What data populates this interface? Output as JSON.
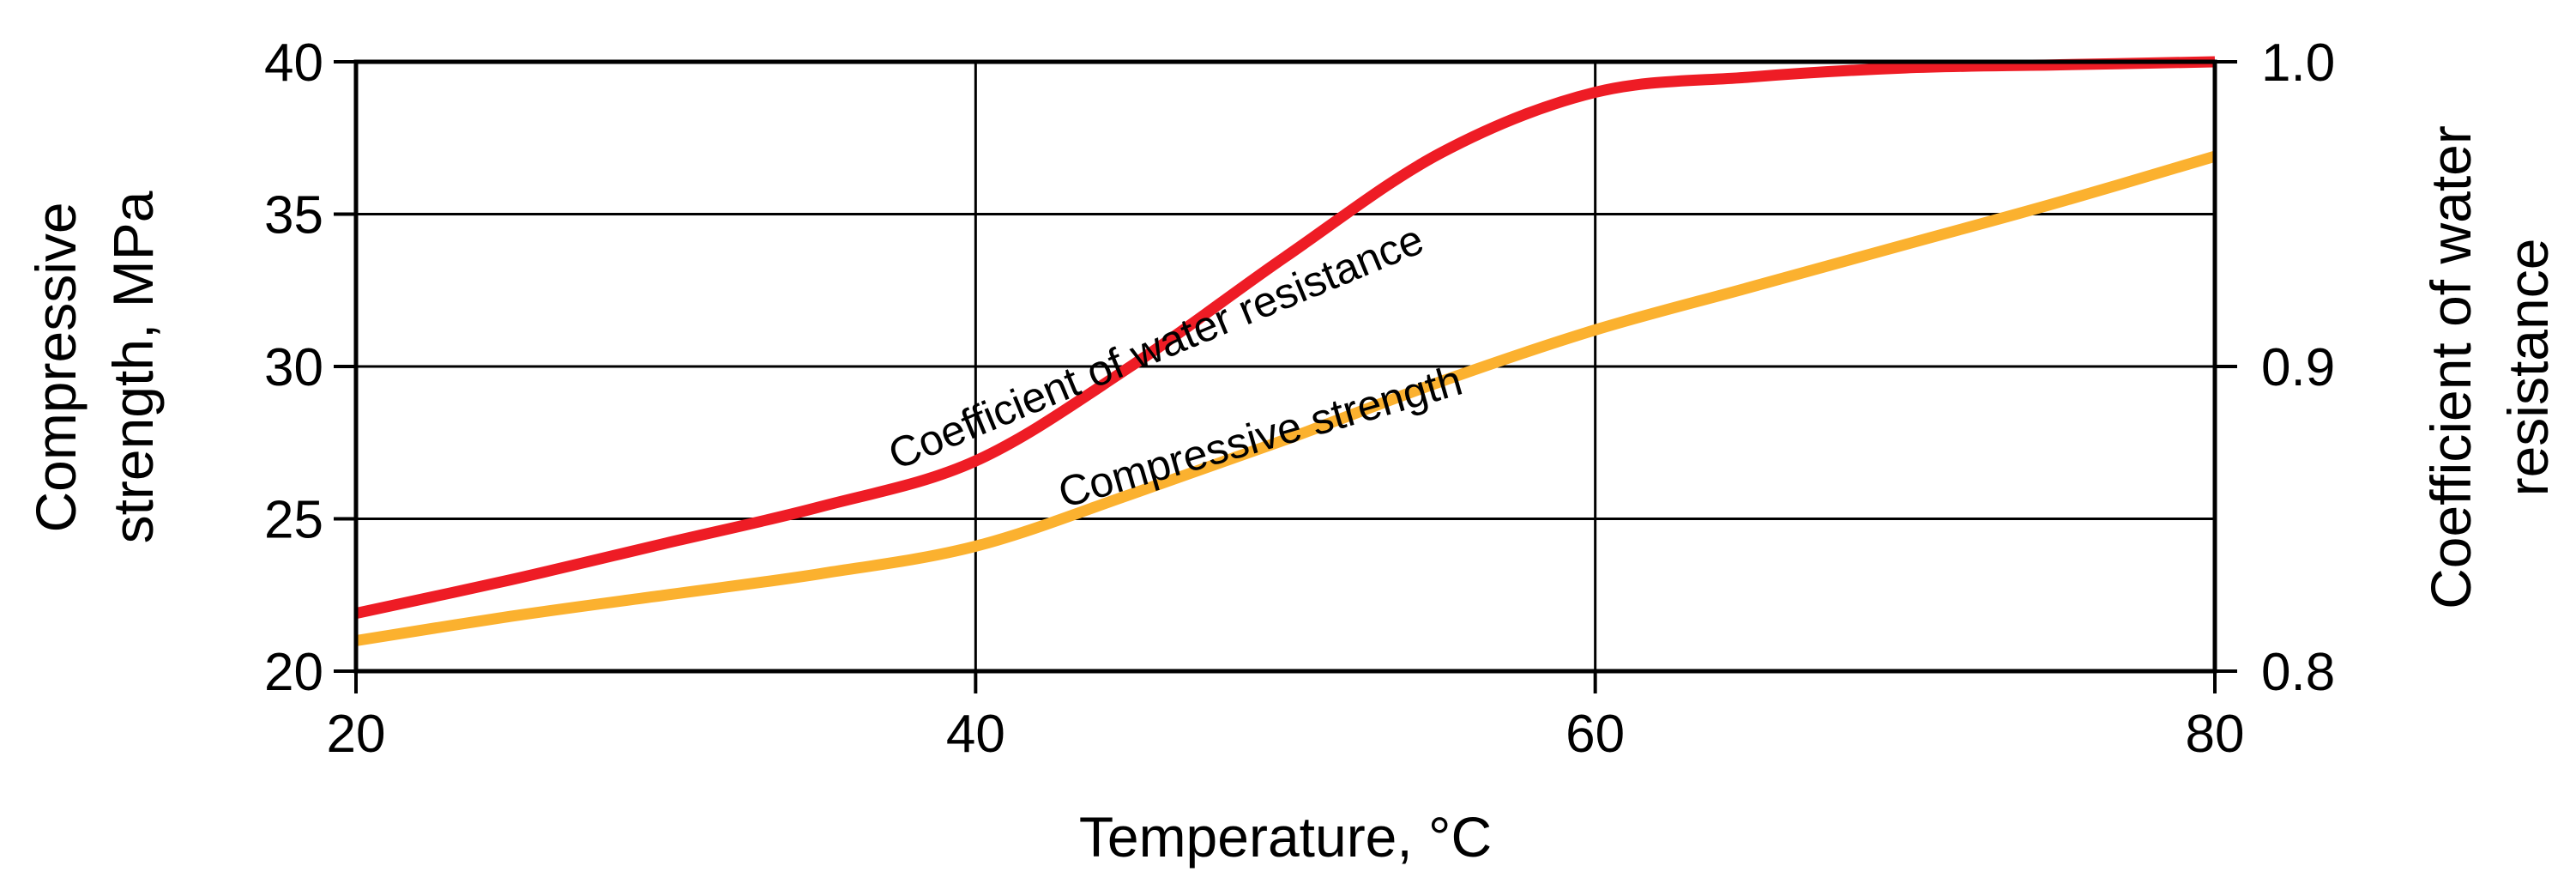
{
  "chart_data": {
    "type": "line",
    "title": "",
    "xlabel": "Temperature, °C",
    "ylabel_left": "Compressive strength, MPa",
    "ylabel_left_lines": [
      "Compressive",
      "strength, MPa"
    ],
    "ylabel_right": "Coefficient of water resistance",
    "ylabel_right_lines": [
      "Coefficient of water",
      "resistance"
    ],
    "xlim": [
      20,
      80
    ],
    "ylim_left": [
      20,
      40
    ],
    "ylim_right": [
      0.8,
      1.0
    ],
    "x_ticks": [
      20,
      40,
      60,
      80
    ],
    "x_tick_labels": [
      "20",
      "40",
      "60",
      "80"
    ],
    "y_left_ticks": [
      20,
      25,
      30,
      35,
      40
    ],
    "y_left_tick_labels": [
      "20",
      "25",
      "30",
      "35",
      "40"
    ],
    "y_right_ticks": [
      0.8,
      0.9,
      1.0
    ],
    "y_right_tick_labels": [
      "0.8",
      "0.9",
      "1.0"
    ],
    "grid": true,
    "series": [
      {
        "name": "Coefficient of water resistance",
        "axis": "right",
        "color": "#ee1c25",
        "label": "Coefficient of water resistance",
        "x": [
          20,
          25,
          30,
          35,
          40,
          45,
          50,
          55,
          60,
          65,
          70,
          75,
          80
        ],
        "values": [
          0.819,
          0.83,
          0.842,
          0.854,
          0.869,
          0.9,
          0.936,
          0.97,
          0.99,
          0.995,
          0.998,
          0.999,
          1.0
        ]
      },
      {
        "name": "Compressive strength",
        "axis": "left",
        "color": "#fbb12f",
        "label": "Compressive strength",
        "x": [
          20,
          25,
          30,
          35,
          40,
          45,
          50,
          55,
          60,
          65,
          70,
          75,
          80
        ],
        "values": [
          21.0,
          21.8,
          22.5,
          23.2,
          24.1,
          25.8,
          27.6,
          29.5,
          31.2,
          32.6,
          34.0,
          35.4,
          36.9
        ]
      }
    ]
  }
}
